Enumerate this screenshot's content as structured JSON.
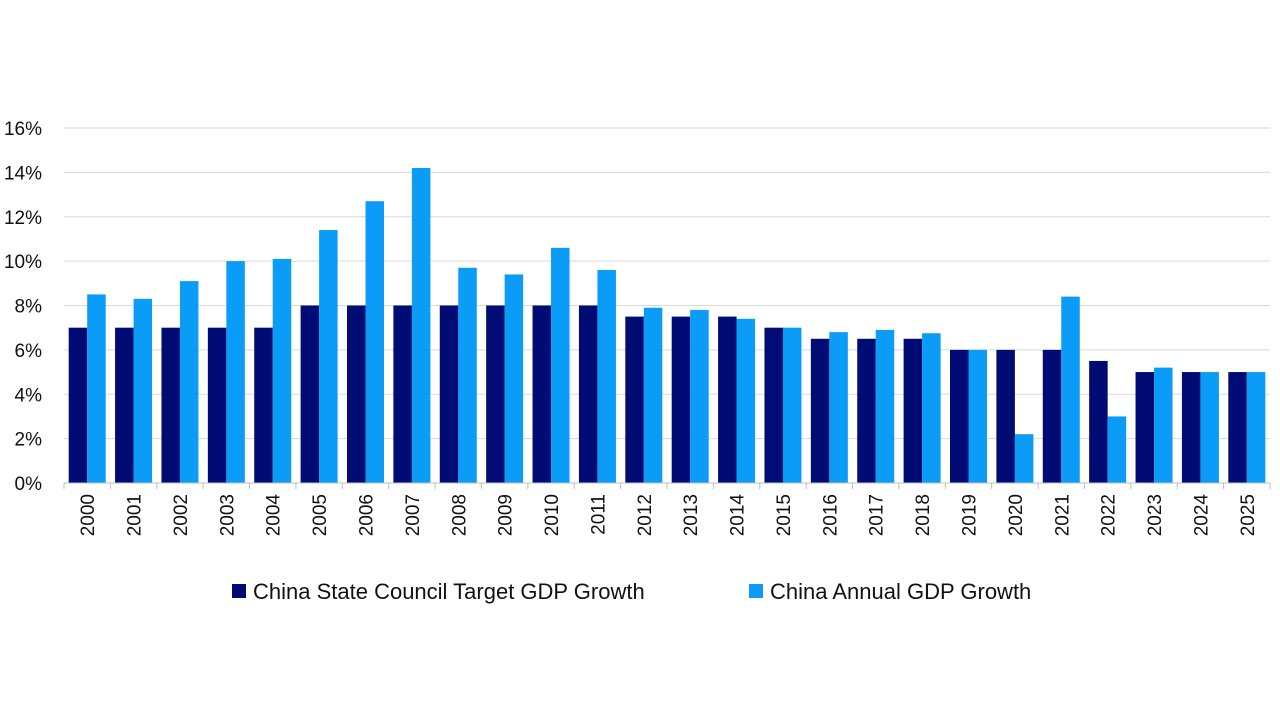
{
  "chart_data": {
    "type": "bar",
    "title": "",
    "xlabel": "",
    "ylabel": "",
    "ylim": [
      0,
      16
    ],
    "yticks": [
      "0%",
      "2%",
      "4%",
      "6%",
      "8%",
      "10%",
      "12%",
      "14%",
      "16%"
    ],
    "grid": true,
    "legend_position": "bottom",
    "categories": [
      "2000",
      "2001",
      "2002",
      "2003",
      "2004",
      "2005",
      "2006",
      "2007",
      "2008",
      "2009",
      "2010",
      "2011",
      "2012",
      "2013",
      "2014",
      "2015",
      "2016",
      "2017",
      "2018",
      "2019",
      "2020",
      "2021",
      "2022",
      "2023",
      "2024",
      "2025"
    ],
    "series": [
      {
        "name": "China State Council Target GDP Growth",
        "color": "#000b73",
        "values": [
          7,
          7,
          7,
          7,
          7,
          8,
          8,
          8,
          8,
          8,
          8,
          8,
          7.5,
          7.5,
          7.5,
          7,
          6.5,
          6.5,
          6.5,
          6,
          6,
          6,
          5.5,
          5,
          5,
          5
        ]
      },
      {
        "name": "China Annual GDP Growth",
        "color": "#0a9cf7",
        "values": [
          8.5,
          8.3,
          9.1,
          10.0,
          10.1,
          11.4,
          12.7,
          14.2,
          9.7,
          9.4,
          10.6,
          9.6,
          7.9,
          7.8,
          7.4,
          7.0,
          6.8,
          6.9,
          6.75,
          6.0,
          2.2,
          8.4,
          3.0,
          5.2,
          5.0,
          5.0
        ]
      }
    ]
  }
}
